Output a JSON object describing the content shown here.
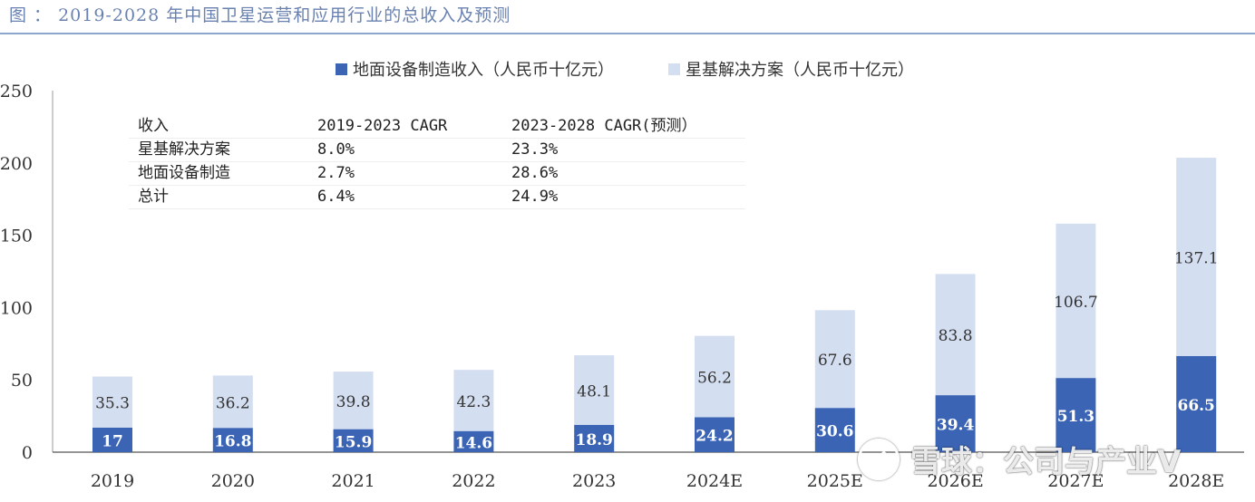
{
  "title": "图 ： 2019-2028 年中国卫星运营和应用行业的总收入及预测",
  "colors": {
    "dark": "#3b64b5",
    "light": "#d4def1",
    "axis": "#555555"
  },
  "chart_data": {
    "type": "bar",
    "stacked": true,
    "categories": [
      "2019",
      "2020",
      "2021",
      "2022",
      "2023",
      "2024E",
      "2025E",
      "2026E",
      "2027E",
      "2028E"
    ],
    "series": [
      {
        "name": "地面设备制造收入（人民币十亿元）",
        "values": [
          17,
          16.8,
          15.9,
          14.6,
          18.9,
          24.2,
          30.6,
          39.4,
          51.3,
          66.5
        ]
      },
      {
        "name": "星基解决方案（人民币十亿元）",
        "values": [
          35.3,
          36.2,
          39.8,
          42.3,
          48.1,
          56.2,
          67.6,
          83.8,
          106.7,
          137.1
        ]
      }
    ],
    "value_labels": [
      [
        "17",
        "16.8",
        "15.9",
        "14.6",
        "18.9",
        "24.2",
        "30.6",
        "39.4",
        "51.3",
        "66.5"
      ],
      [
        "35.3",
        "36.2",
        "39.8",
        "42.3",
        "48.1",
        "56.2",
        "67.6",
        "83.8",
        "106.7",
        "137.1"
      ]
    ],
    "ylim": [
      0,
      250
    ],
    "yticks": [
      "0",
      "50",
      "100",
      "150",
      "200",
      "250"
    ],
    "legend_position": "top",
    "grid": false
  },
  "cagr_table": {
    "header": [
      "收入",
      "2019-2023 CAGR",
      "2023-2028 CAGR(预测）"
    ],
    "rows": [
      [
        "星基解决方案",
        "8.0%",
        "23.3%"
      ],
      [
        "地面设备制造",
        "2.7%",
        "28.6%"
      ],
      [
        "总计",
        "6.4%",
        "24.9%"
      ]
    ]
  },
  "watermark": {
    "text": "雪球：公司与产业V",
    "icon": "snowball-logo-icon"
  }
}
